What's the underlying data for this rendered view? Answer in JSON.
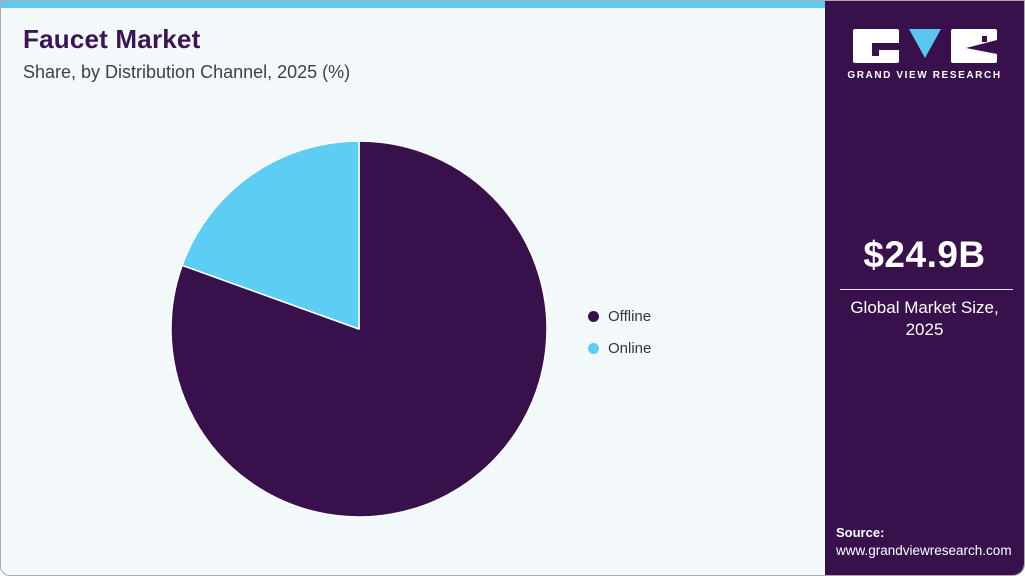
{
  "chart_data": {
    "type": "pie",
    "title": "Faucet Market",
    "subtitle": "Share, by Distribution Channel, 2025 (%)",
    "series": [
      {
        "name": "Offline",
        "value": 80.5,
        "color": "#38114c"
      },
      {
        "name": "Online",
        "value": 19.5,
        "color": "#5ecdf4"
      }
    ],
    "start_angle_deg": 0,
    "direction": "clockwise",
    "legend_position": "right",
    "data_labels_shown": false
  },
  "colors": {
    "accent_bar": "#61c8ee",
    "sidebar_bg": "#38114c",
    "main_bg": "#f3f8fb",
    "title_text": "#3a1552",
    "slice_stroke": "#ffffff"
  },
  "sidebar": {
    "logo": {
      "icon": "gvr-logo-icon",
      "brand": "GRAND VIEW RESEARCH"
    },
    "stat_value": "$24.9B",
    "stat_label_line1": "Global Market Size,",
    "stat_label_line2": "2025",
    "source_label": "Source:",
    "source_url": "www.grandviewresearch.com"
  }
}
